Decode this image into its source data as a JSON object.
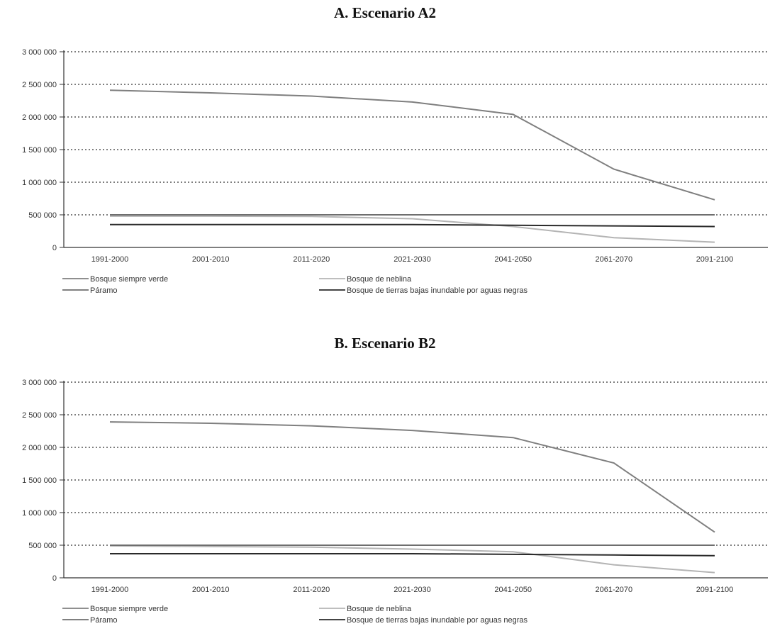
{
  "chart_data": [
    {
      "type": "line",
      "title": "A. Escenario A2",
      "categories": [
        "1991-2000",
        "2001-2010",
        "2011-2020",
        "2021-2030",
        "2041-2050",
        "2061-2070",
        "2091-2100"
      ],
      "y_ticks": [
        "3 000 000",
        "2 500 000",
        "2 000 000",
        "1 500 000",
        "1 000 000",
        "500 000",
        "0"
      ],
      "ylim": [
        0,
        3000000
      ],
      "grid": true,
      "legend_position": "bottom",
      "series": [
        {
          "name": "Bosque siempre verde",
          "color": "#7f7f7f",
          "values": [
            2410000,
            2370000,
            2320000,
            2230000,
            2040000,
            1200000,
            730000
          ]
        },
        {
          "name": "Bosque de neblina",
          "color": "#b4b4b4",
          "values": [
            480000,
            480000,
            475000,
            440000,
            320000,
            150000,
            80000
          ]
        },
        {
          "name": "Páramo",
          "color": "#6e6e6e",
          "values": [
            500000,
            500000,
            500000,
            500000,
            500000,
            500000,
            500000
          ]
        },
        {
          "name": "Bosque de tierras bajas inundable por aguas negras",
          "color": "#2a2a2a",
          "values": [
            350000,
            350000,
            350000,
            350000,
            340000,
            330000,
            320000
          ]
        }
      ]
    },
    {
      "type": "line",
      "title": "B. Escenario B2",
      "categories": [
        "1991-2000",
        "2001-2010",
        "2011-2020",
        "2021-2030",
        "2041-2050",
        "2061-2070",
        "2091-2100"
      ],
      "y_ticks": [
        "3 000 000",
        "2 500 000",
        "2 000 000",
        "1 500 000",
        "1 000 000",
        "500 000",
        "0"
      ],
      "ylim": [
        0,
        3000000
      ],
      "grid": true,
      "legend_position": "bottom",
      "series": [
        {
          "name": "Bosque siempre verde",
          "color": "#7f7f7f",
          "values": [
            2390000,
            2370000,
            2330000,
            2260000,
            2150000,
            1760000,
            700000
          ]
        },
        {
          "name": "Bosque de neblina",
          "color": "#b4b4b4",
          "values": [
            490000,
            480000,
            470000,
            440000,
            400000,
            200000,
            80000
          ]
        },
        {
          "name": "Páramo",
          "color": "#6e6e6e",
          "values": [
            500000,
            500000,
            500000,
            500000,
            500000,
            500000,
            500000
          ]
        },
        {
          "name": "Bosque de tierras bajas inundable por aguas negras",
          "color": "#2a2a2a",
          "values": [
            370000,
            370000,
            370000,
            370000,
            360000,
            350000,
            340000
          ]
        }
      ]
    }
  ]
}
